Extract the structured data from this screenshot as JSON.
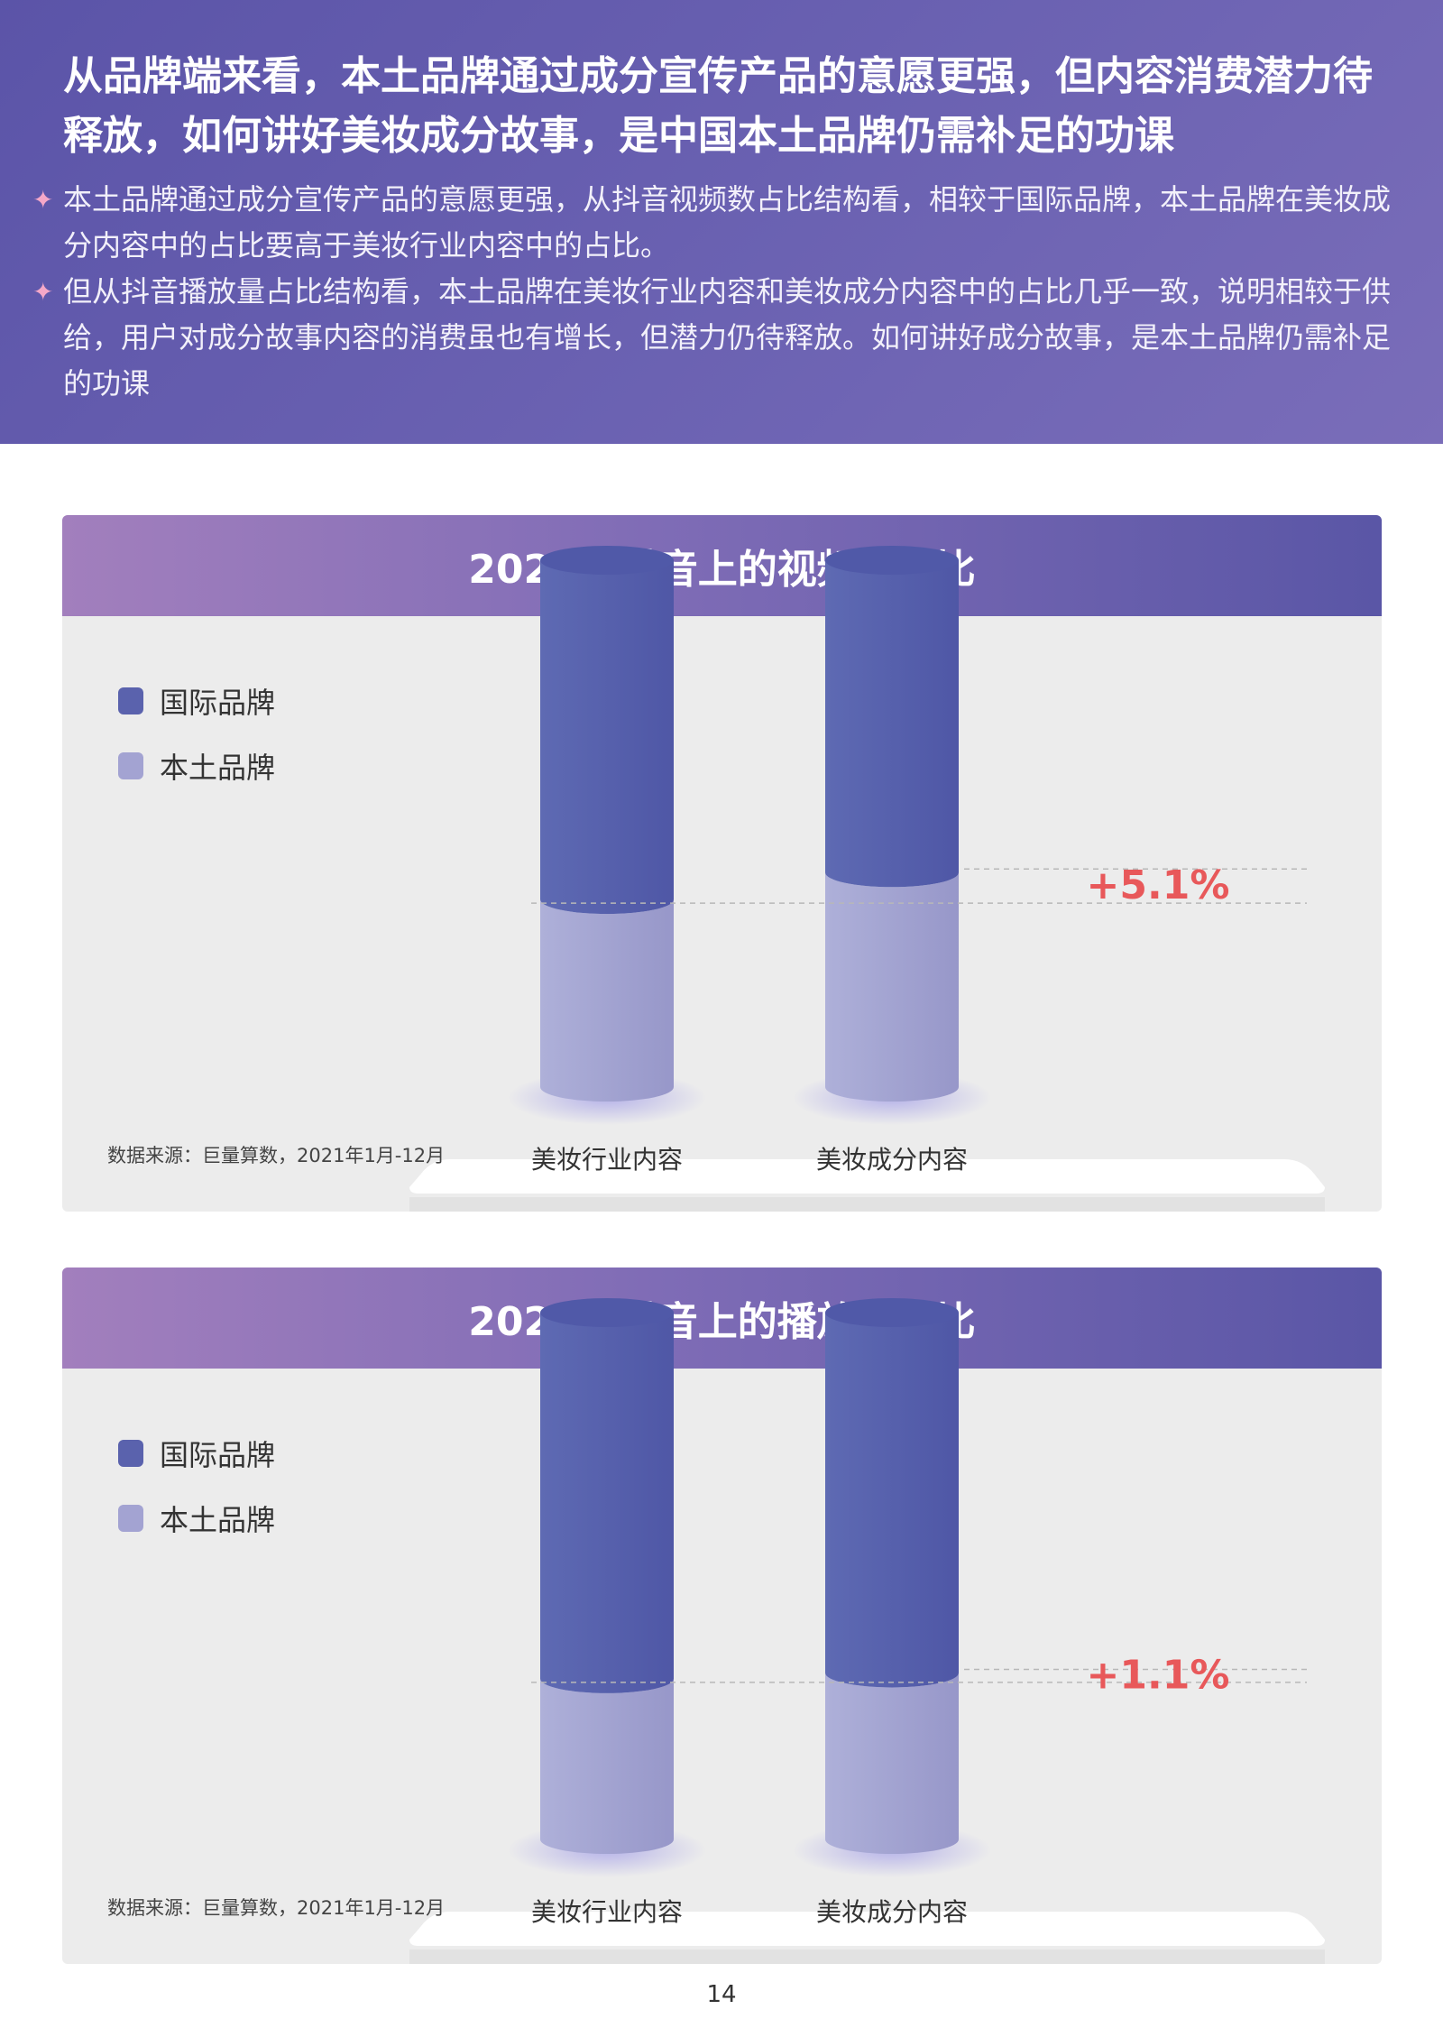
{
  "header": {
    "headline": "从品牌端来看，本土品牌通过成分宣传产品的意愿更强，但内容消费潜力待释放，如何讲好美妆成分故事，是中国本土品牌仍需补足的功课",
    "bullets": [
      "本土品牌通过成分宣传产品的意愿更强，从抖音视频数占比结构看，相较于国际品牌，本土品牌在美妆成分内容中的占比要高于美妆行业内容中的占比。",
      "但从抖音播放量占比结构看，本土品牌在美妆行业内容和美妆成分内容中的占比几乎一致，说明相较于供给，用户对成分故事内容的消费虽也有增长，但潜力仍待释放。如何讲好成分故事，是本土品牌仍需补足的功课"
    ]
  },
  "colors": {
    "international": "#5a62ad",
    "domestic": "#a3a3d2",
    "delta": "#e8585a"
  },
  "chart_data": [
    {
      "type": "bar",
      "stacked": true,
      "title": "2021年抖音上的视频数占比",
      "categories": [
        "美妆行业内容",
        "美妆成分内容"
      ],
      "series": [
        {
          "name": "国际品牌",
          "values": [
            64.4,
            59.3
          ]
        },
        {
          "name": "本土品牌",
          "values": [
            35.6,
            40.7
          ]
        }
      ],
      "ylim": [
        0,
        100
      ],
      "annotation": "+5.1%",
      "source": "数据来源：巨量算数，2021年1月-12月"
    },
    {
      "type": "bar",
      "stacked": true,
      "title": "2021年抖音上的播放量占比",
      "categories": [
        "美妆行业内容",
        "美妆成分内容"
      ],
      "series": [
        {
          "name": "国际品牌",
          "values": [
            69.5,
            68.4
          ]
        },
        {
          "name": "本土品牌",
          "values": [
            30.5,
            31.6
          ]
        }
      ],
      "ylim": [
        0,
        100
      ],
      "annotation": "+1.1%",
      "source": "数据来源：巨量算数，2021年1月-12月"
    }
  ],
  "page_number": "14"
}
